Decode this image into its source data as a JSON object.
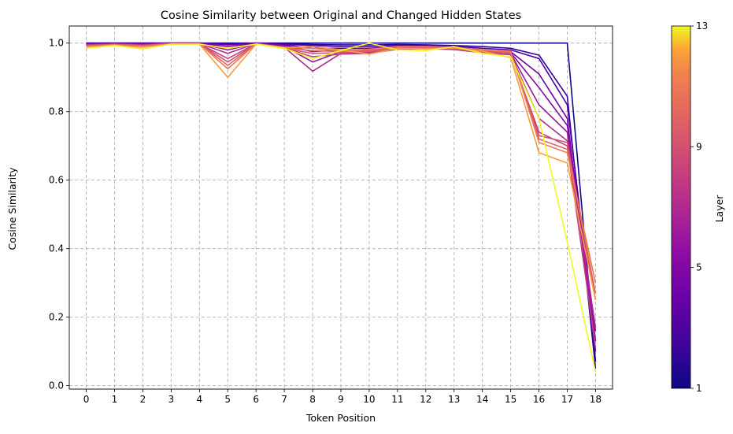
{
  "chart_data": {
    "type": "line",
    "title": "Cosine Similarity between Original and Changed Hidden States",
    "xlabel": "Token Position",
    "ylabel": "Cosine Similarity",
    "x": [
      0,
      1,
      2,
      3,
      4,
      5,
      6,
      7,
      8,
      9,
      10,
      11,
      12,
      13,
      14,
      15,
      16,
      17,
      18
    ],
    "xlim": [
      -0.6,
      18.6
    ],
    "ylim": [
      -0.01,
      1.05
    ],
    "y_ticks": [
      "0.0",
      "0.2",
      "0.4",
      "0.6",
      "0.8",
      "1.0"
    ],
    "y_tick_values": [
      0.0,
      0.2,
      0.4,
      0.6,
      0.8,
      1.0
    ],
    "grid": true,
    "colormap": "plasma",
    "colorbar": {
      "label": "Layer",
      "range": [
        1,
        13
      ],
      "ticks": [
        "1",
        "5",
        "9",
        "13"
      ],
      "tick_values": [
        1,
        5,
        9,
        13
      ]
    },
    "series": [
      {
        "layer": 1,
        "values": [
          1.0,
          1.0,
          1.0,
          1.0,
          1.0,
          1.0,
          1.0,
          1.0,
          1.0,
          1.0,
          1.0,
          1.0,
          1.0,
          1.0,
          1.0,
          1.0,
          1.0,
          1.0,
          0.07
        ]
      },
      {
        "layer": 2,
        "values": [
          1.0,
          1.0,
          1.0,
          1.0,
          1.0,
          0.998,
          1.0,
          0.998,
          0.996,
          0.995,
          0.995,
          0.996,
          0.995,
          0.993,
          0.99,
          0.985,
          0.965,
          0.845,
          0.05
        ]
      },
      {
        "layer": 3,
        "values": [
          0.999,
          0.999,
          0.999,
          1.0,
          1.0,
          0.997,
          1.0,
          0.997,
          0.993,
          0.99,
          0.99,
          0.993,
          0.992,
          0.99,
          0.985,
          0.98,
          0.955,
          0.82,
          0.13
        ]
      },
      {
        "layer": 4,
        "values": [
          0.998,
          0.999,
          0.998,
          1.0,
          1.0,
          0.995,
          1.0,
          0.995,
          0.985,
          0.985,
          0.985,
          0.99,
          0.99,
          0.987,
          0.98,
          0.975,
          0.91,
          0.78,
          0.1
        ]
      },
      {
        "layer": 5,
        "values": [
          0.997,
          0.998,
          0.997,
          0.999,
          0.999,
          0.99,
          0.999,
          0.993,
          0.975,
          0.98,
          0.98,
          0.988,
          0.988,
          0.985,
          0.978,
          0.972,
          0.87,
          0.76,
          0.16
        ]
      },
      {
        "layer": 6,
        "values": [
          0.996,
          0.998,
          0.996,
          0.999,
          0.999,
          0.98,
          0.999,
          0.99,
          0.945,
          0.975,
          0.975,
          0.985,
          0.986,
          0.983,
          0.975,
          0.97,
          0.82,
          0.74,
          0.13
        ]
      },
      {
        "layer": 7,
        "values": [
          0.995,
          0.997,
          0.995,
          0.999,
          0.999,
          0.97,
          0.999,
          0.988,
          0.918,
          0.97,
          0.972,
          0.983,
          0.985,
          0.982,
          0.973,
          0.968,
          0.78,
          0.715,
          0.17
        ]
      },
      {
        "layer": 8,
        "values": [
          0.994,
          0.997,
          0.994,
          0.998,
          0.998,
          0.955,
          0.998,
          0.986,
          0.96,
          0.968,
          0.97,
          0.982,
          0.984,
          0.981,
          0.972,
          0.966,
          0.74,
          0.7,
          0.11
        ]
      },
      {
        "layer": 9,
        "values": [
          0.993,
          0.996,
          0.993,
          0.998,
          0.998,
          0.945,
          0.998,
          0.985,
          0.97,
          0.972,
          0.975,
          0.985,
          0.986,
          0.984,
          0.975,
          0.97,
          0.73,
          0.71,
          0.25
        ]
      },
      {
        "layer": 10,
        "values": [
          0.992,
          0.996,
          0.992,
          0.998,
          0.998,
          0.935,
          0.998,
          0.986,
          0.978,
          0.975,
          0.978,
          0.988,
          0.988,
          0.986,
          0.978,
          0.973,
          0.72,
          0.69,
          0.27
        ]
      },
      {
        "layer": 11,
        "values": [
          0.99,
          0.995,
          0.99,
          0.998,
          0.998,
          0.925,
          0.998,
          0.988,
          0.985,
          0.978,
          0.982,
          0.99,
          0.99,
          0.988,
          0.98,
          0.976,
          0.71,
          0.68,
          0.3
        ]
      },
      {
        "layer": 12,
        "values": [
          0.988,
          0.994,
          0.985,
          0.997,
          0.997,
          0.9,
          0.997,
          0.987,
          0.99,
          0.98,
          0.968,
          0.985,
          0.983,
          0.986,
          0.976,
          0.958,
          0.68,
          0.65,
          0.25
        ]
      },
      {
        "layer": 13,
        "values": [
          0.985,
          0.993,
          0.983,
          0.997,
          0.997,
          0.985,
          0.997,
          0.985,
          0.955,
          0.978,
          1.0,
          0.98,
          0.978,
          0.99,
          0.97,
          0.96,
          0.78,
          0.42,
          0.04
        ]
      }
    ]
  }
}
